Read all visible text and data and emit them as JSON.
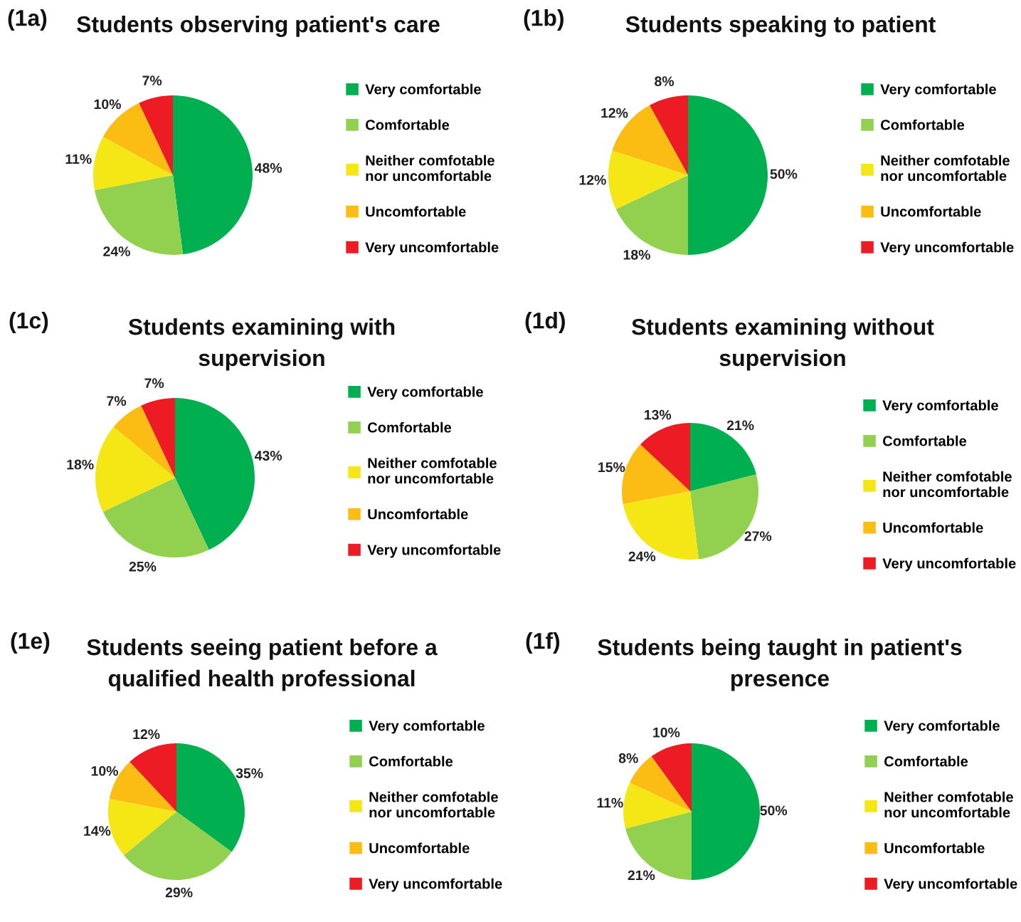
{
  "chart_data": [
    {
      "type": "pie",
      "title": "Students observing patient's care",
      "annotations": [
        "(1a)"
      ],
      "categories": [
        "Very comfortable",
        "Comfortable",
        "Neither comfotable\nnor uncomfortable",
        "Uncomfortable",
        "Very uncomfortable"
      ],
      "values": [
        48,
        24,
        11,
        10,
        7
      ],
      "value_labels": [
        "48%",
        "24%",
        "11%",
        "10%",
        "7%"
      ],
      "colors": [
        "#00b050",
        "#92d050",
        "#f5e616",
        "#fbbc14",
        "#ed1c24"
      ],
      "legend": "right"
    },
    {
      "type": "pie",
      "title": "Students speaking to patient",
      "annotations": [
        "(1b)"
      ],
      "categories": [
        "Very comfortable",
        "Comfortable",
        "Neither comfotable\nnor uncomfortable",
        "Uncomfortable",
        "Very uncomfortable"
      ],
      "values": [
        50,
        18,
        12,
        12,
        8
      ],
      "value_labels": [
        "50%",
        "18%",
        "12%",
        "12%",
        "8%"
      ],
      "colors": [
        "#00b050",
        "#92d050",
        "#f5e616",
        "#fbbc14",
        "#ed1c24"
      ],
      "legend": "right"
    },
    {
      "type": "pie",
      "title": "Students examining with\nsupervision",
      "annotations": [
        "(1c)"
      ],
      "categories": [
        "Very comfortable",
        "Comfortable",
        "Neither comfotable\nnor uncomfortable",
        "Uncomfortable",
        "Very uncomfortable"
      ],
      "values": [
        43,
        25,
        18,
        7,
        7
      ],
      "value_labels": [
        "43%",
        "25%",
        "18%",
        "7%",
        "7%"
      ],
      "colors": [
        "#00b050",
        "#92d050",
        "#f5e616",
        "#fbbc14",
        "#ed1c24"
      ],
      "legend": "right"
    },
    {
      "type": "pie",
      "title": "Students examining without\nsupervision",
      "annotations": [
        "(1d)"
      ],
      "categories": [
        "Very comfortable",
        "Comfortable",
        "Neither comfotable\nnor uncomfortable",
        "Uncomfortable",
        "Very uncomfortable"
      ],
      "values": [
        21,
        27,
        24,
        15,
        13
      ],
      "value_labels": [
        "21%",
        "27%",
        "24%",
        "15%",
        "13%"
      ],
      "colors": [
        "#00b050",
        "#92d050",
        "#f5e616",
        "#fbbc14",
        "#ed1c24"
      ],
      "legend": "right"
    },
    {
      "type": "pie",
      "title": "Students seeing patient before a\nqualified health professional",
      "annotations": [
        "(1e)"
      ],
      "categories": [
        "Very comfortable",
        "Comfortable",
        "Neither comfotable\nnor uncomfortable",
        "Uncomfortable",
        "Very uncomfortable"
      ],
      "values": [
        35,
        29,
        14,
        10,
        12
      ],
      "value_labels": [
        "35%",
        "29%",
        "14%",
        "10%",
        "12%"
      ],
      "colors": [
        "#00b050",
        "#92d050",
        "#f5e616",
        "#fbbc14",
        "#ed1c24"
      ],
      "legend": "right"
    },
    {
      "type": "pie",
      "title": "Students being taught in patient's\npresence",
      "annotations": [
        "(1f)"
      ],
      "categories": [
        "Very comfortable",
        "Comfortable",
        "Neither comfotable\nnor uncomfortable",
        "Uncomfortable",
        "Very uncomfortable"
      ],
      "values": [
        50,
        21,
        11,
        8,
        10
      ],
      "value_labels": [
        "50%",
        "21%",
        "11%",
        "8%",
        "10%"
      ],
      "colors": [
        "#00b050",
        "#92d050",
        "#f5e616",
        "#fbbc14",
        "#ed1c24"
      ],
      "legend": "right"
    }
  ]
}
